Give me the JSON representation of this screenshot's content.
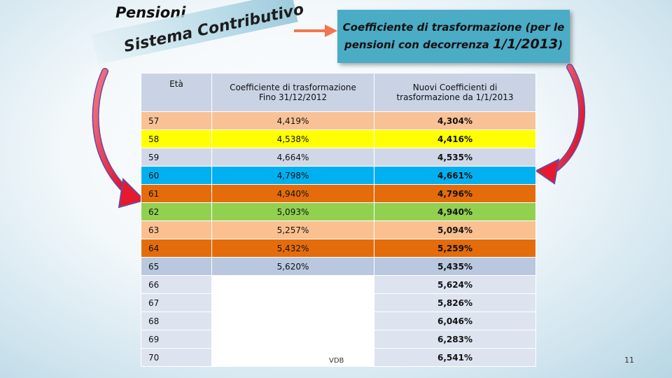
{
  "slide": {
    "title": "Pensioni",
    "banner": "Sistema Contributivo",
    "coef_box": {
      "line1": "Coefficiente di trasformazione (per le",
      "line2": "pensioni  con decorrenza",
      "date": "1/1/2013",
      "close": ")"
    },
    "footer_left": "VDB",
    "page_number": "11"
  },
  "table": {
    "headers": {
      "age": "Età",
      "old_a": "Coefficiente di trasformazione",
      "old_b": "Fino 31/12/2012",
      "new_a": "Nuovi Coefficienti di",
      "new_b": "trasformazione da 1/1/2013"
    },
    "rows": [
      {
        "age": "57",
        "old": "4,419%",
        "new": "4,304%",
        "color": "#f9c296"
      },
      {
        "age": "58",
        "old": "4,538%",
        "new": "4,416%",
        "color": "#ffff00"
      },
      {
        "age": "59",
        "old": "4,664%",
        "new": "4,535%",
        "color": "#d0d8e8"
      },
      {
        "age": "60",
        "old": "4,798%",
        "new": "4,661%",
        "color": "#00b0f0"
      },
      {
        "age": "61",
        "old": "4,940%",
        "new": "4,796%",
        "color": "#e46c0a"
      },
      {
        "age": "62",
        "old": "5,093%",
        "new": "4,940%",
        "color": "#92d050"
      },
      {
        "age": "63",
        "old": "5,257%",
        "new": "5,094%",
        "color": "#fac090"
      },
      {
        "age": "64",
        "old": "5,432%",
        "new": "5,259%",
        "color": "#e46c0a"
      },
      {
        "age": "65",
        "old": "5,620%",
        "new": "5,435%",
        "color": "#b9c7df"
      },
      {
        "age": "66",
        "old": "",
        "new": "5,624%",
        "color": "#dde4ef"
      },
      {
        "age": "67",
        "old": "",
        "new": "5,826%",
        "color": "#dde4ef"
      },
      {
        "age": "68",
        "old": "",
        "new": "6,046%",
        "color": "#dde4ef"
      },
      {
        "age": "69",
        "old": "",
        "new": "6,283%",
        "color": "#dde4ef"
      },
      {
        "age": "70",
        "old": "",
        "new": "6,541%",
        "color": "#dde4ef"
      }
    ]
  },
  "colors": {
    "accent_box": "#4bacc6",
    "arrow_red": "#e8192c",
    "arrow_orange": "#f2754e"
  }
}
